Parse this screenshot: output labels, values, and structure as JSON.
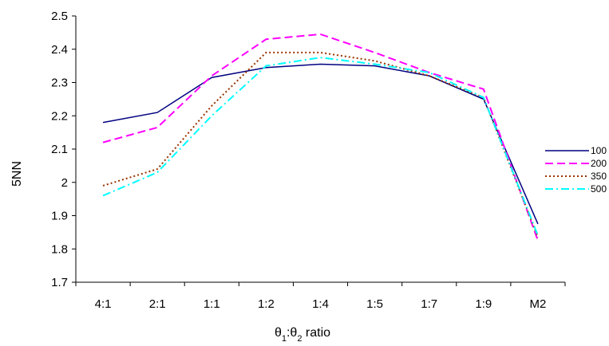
{
  "chart_data": {
    "type": "line",
    "title": "",
    "xlabel": "θ1:θ2 ratio",
    "xlabel_parts": {
      "theta1": "θ",
      "sub1": "1",
      "colon": ":θ",
      "sub2": "2",
      "rest": " ratio"
    },
    "ylabel": "5NN",
    "ylim": [
      1.7,
      2.5
    ],
    "yticks": [
      "1.7",
      "1.8",
      "1.9",
      "2",
      "2.1",
      "2.2",
      "2.3",
      "2.4",
      "2.5"
    ],
    "categories": [
      "4:1",
      "2:1",
      "1:1",
      "1:2",
      "1:4",
      "1:5",
      "1:7",
      "1:9",
      "M2"
    ],
    "grid": false,
    "legend_position": "right",
    "series": [
      {
        "name": "100",
        "color": "#000080",
        "dash": "solid",
        "values": [
          2.18,
          2.21,
          2.315,
          2.345,
          2.355,
          2.35,
          2.32,
          2.25,
          1.875
        ]
      },
      {
        "name": "200",
        "color": "#ff00ff",
        "dash": "dashed",
        "values": [
          2.12,
          2.165,
          2.32,
          2.43,
          2.445,
          2.39,
          2.33,
          2.28,
          1.825
        ]
      },
      {
        "name": "350",
        "color": "#993300",
        "dash": "dotted",
        "values": [
          1.99,
          2.04,
          2.23,
          2.39,
          2.39,
          2.365,
          2.32,
          2.255,
          1.835
        ]
      },
      {
        "name": "500",
        "color": "#00ffff",
        "dash": "dashdot",
        "values": [
          1.96,
          2.03,
          2.2,
          2.35,
          2.375,
          2.355,
          2.33,
          2.255,
          1.84
        ]
      }
    ]
  }
}
